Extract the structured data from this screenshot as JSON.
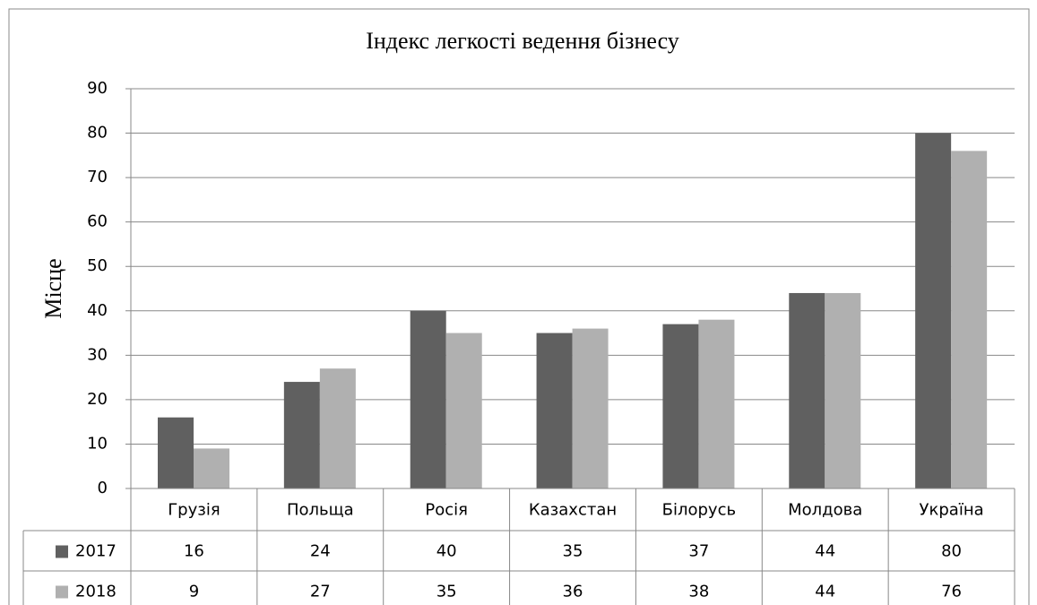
{
  "chart_data": {
    "type": "bar",
    "title": "Індекс легкості ведення бізнесу",
    "y_label": "Місце",
    "categories": [
      "Грузія",
      "Польща",
      "Росія",
      "Казахстан",
      "Білорусь",
      "Молдова",
      "Україна"
    ],
    "series": [
      {
        "name": "2017",
        "color": "#606060",
        "values": [
          16,
          24,
          40,
          35,
          37,
          44,
          80
        ]
      },
      {
        "name": "2018",
        "color": "#b0b0b0",
        "values": [
          9,
          27,
          35,
          36,
          38,
          44,
          76
        ]
      }
    ],
    "ylim": [
      0,
      90
    ],
    "yticks": [
      0,
      10,
      20,
      30,
      40,
      50,
      60,
      70,
      80,
      90
    ],
    "grid": true,
    "data_table": true
  }
}
